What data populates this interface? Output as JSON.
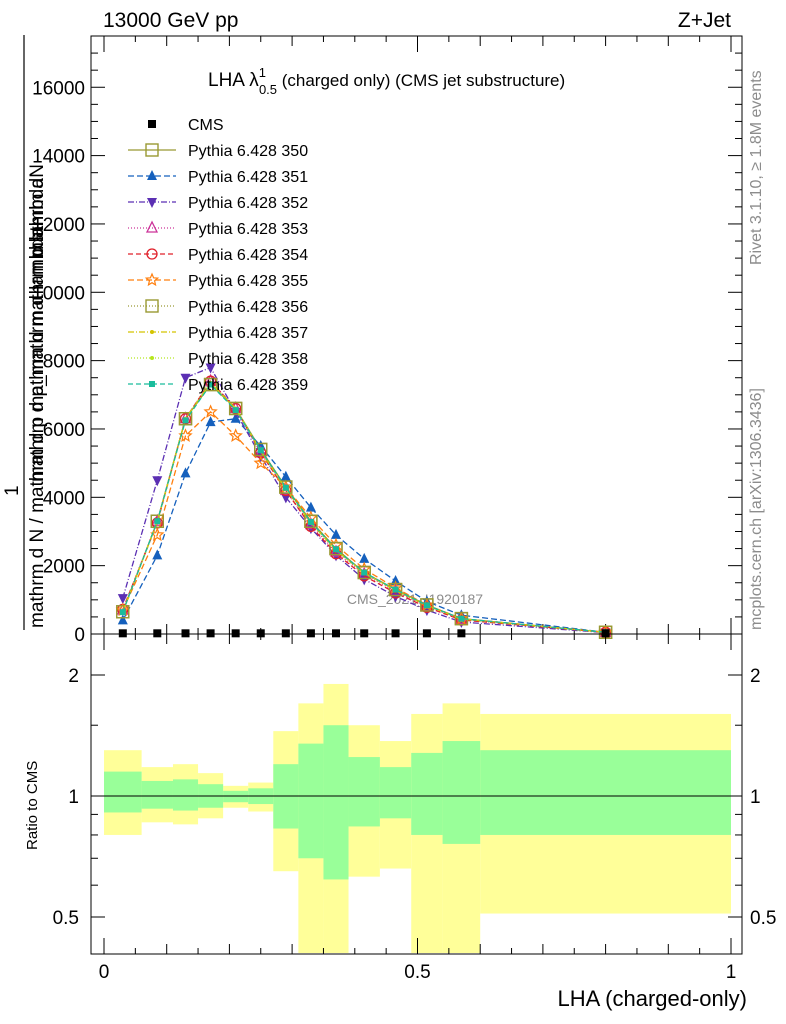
{
  "header": {
    "left": "13000 GeV pp",
    "right": "Z+Jet"
  },
  "side": {
    "rivet": "Rivet 3.1.10, ≥ 1.8M events",
    "mcplots": "mcplots.cern.ch [arXiv:1306.3436]"
  },
  "watermark": "CMS_2021_I1920187",
  "main_title": {
    "prefix": "LHA λ",
    "sup": "1",
    "sub": "0.5",
    "suffix": " (charged only) (CMS jet substructure)"
  },
  "ylabel_main": {
    "line1": "mathrm dN",
    "line1b": "mathrm d p_mathrm d lambda",
    "one": "1",
    "line2": "mathrm d N / mathrm d p mathrm d mathrm d lambda"
  },
  "ylabel_ratio": "Ratio to CMS",
  "xlabel": "LHA (charged-only)",
  "colors": {
    "green_band": "#99ff99",
    "yellow_band": "#ffff99"
  },
  "chart_data": [
    {
      "type": "line",
      "panel": "main",
      "xlim": [
        -0.02,
        1.0
      ],
      "ylim": [
        0,
        17500
      ],
      "yticks": [
        0,
        2000,
        4000,
        6000,
        8000,
        10000,
        12000,
        14000,
        16000
      ],
      "yticklabels": [
        "0",
        "2000",
        "4000",
        "6000",
        "8000",
        "10000",
        "12000",
        "14000",
        "16000"
      ],
      "legend_position": "top-left",
      "x": [
        0.03,
        0.085,
        0.13,
        0.17,
        0.21,
        0.25,
        0.29,
        0.33,
        0.37,
        0.415,
        0.465,
        0.515,
        0.57,
        0.8
      ],
      "series": [
        {
          "name": "CMS",
          "color": "#000000",
          "marker": "square-filled",
          "dash": "",
          "values": [
            20,
            20,
            20,
            20,
            20,
            20,
            20,
            20,
            20,
            20,
            20,
            20,
            20,
            20
          ]
        },
        {
          "name": "Pythia 6.428 350",
          "color": "#999933",
          "marker": "square-open",
          "dash": "",
          "values": [
            650,
            3300,
            6300,
            7300,
            6600,
            5400,
            4300,
            3300,
            2500,
            1800,
            1300,
            850,
            450,
            50
          ]
        },
        {
          "name": "Pythia 6.428 351",
          "color": "#1560bd",
          "marker": "triangle-up-filled",
          "dash": "6,3",
          "values": [
            400,
            2300,
            4700,
            6200,
            6300,
            5500,
            4600,
            3700,
            2900,
            2200,
            1550,
            950,
            550,
            50
          ]
        },
        {
          "name": "Pythia 6.428 352",
          "color": "#5b2fb3",
          "marker": "triangle-down-filled",
          "dash": "6,2,1,2",
          "values": [
            1050,
            4500,
            7500,
            7800,
            6500,
            5200,
            4000,
            3100,
            2300,
            1600,
            1100,
            700,
            350,
            40
          ]
        },
        {
          "name": "Pythia 6.428 353",
          "color": "#cc3399",
          "marker": "triangle-up-open",
          "dash": "1,2",
          "values": [
            700,
            3300,
            6300,
            7400,
            6600,
            5300,
            4200,
            3200,
            2400,
            1750,
            1250,
            800,
            420,
            50
          ]
        },
        {
          "name": "Pythia 6.428 354",
          "color": "#e0202a",
          "marker": "circle-open",
          "dash": "5,3",
          "values": [
            720,
            3250,
            6300,
            7400,
            6600,
            5300,
            4200,
            3150,
            2350,
            1700,
            1200,
            780,
            410,
            50
          ]
        },
        {
          "name": "Pythia 6.428 355",
          "color": "#ff7f0e",
          "marker": "star-open",
          "dash": "6,3",
          "values": [
            700,
            2900,
            5800,
            6500,
            5800,
            5000,
            4300,
            3400,
            2600,
            1900,
            1350,
            850,
            450,
            50
          ]
        },
        {
          "name": "Pythia 6.428 356",
          "color": "#999933",
          "marker": "square-open",
          "dash": "1,2",
          "values": [
            650,
            3300,
            6300,
            7300,
            6600,
            5400,
            4300,
            3300,
            2500,
            1800,
            1300,
            850,
            450,
            50
          ]
        },
        {
          "name": "Pythia 6.428 357",
          "color": "#d4c400",
          "marker": "small-dot",
          "dash": "6,2,1,2",
          "values": [
            660,
            3280,
            6300,
            7350,
            6600,
            5350,
            4250,
            3250,
            2450,
            1780,
            1280,
            830,
            440,
            50
          ]
        },
        {
          "name": "Pythia 6.428 358",
          "color": "#b5e61d",
          "marker": "small-dot",
          "dash": "1,2",
          "values": [
            660,
            3280,
            6300,
            7350,
            6600,
            5350,
            4250,
            3250,
            2450,
            1780,
            1280,
            830,
            440,
            50
          ]
        },
        {
          "name": "Pythia 6.428 359",
          "color": "#1abc9c",
          "marker": "square-small-filled",
          "dash": "5,3",
          "values": [
            640,
            3300,
            6250,
            7300,
            6550,
            5380,
            4280,
            3280,
            2480,
            1800,
            1300,
            840,
            450,
            50
          ]
        }
      ]
    },
    {
      "type": "area",
      "panel": "ratio",
      "xlim": [
        -0.02,
        1.0
      ],
      "ylim": [
        0.4,
        2.3
      ],
      "yscale": "log",
      "yticks": [
        0.5,
        1,
        2
      ],
      "yticklabels": [
        "0.5",
        "1",
        "2"
      ],
      "xticks": [
        0,
        0.5,
        1
      ],
      "xticklabels": [
        "0",
        "0.5",
        "1"
      ],
      "ylabel": "Ratio to CMS",
      "xlabel": "LHA (charged-only)",
      "reference_line": 1,
      "bins": [
        0,
        0.06,
        0.11,
        0.15,
        0.19,
        0.23,
        0.27,
        0.31,
        0.35,
        0.39,
        0.44,
        0.49,
        0.54,
        0.6,
        1.0
      ],
      "bands": [
        {
          "name": "stat",
          "color": "#99ff99",
          "lo": [
            0.91,
            0.93,
            0.92,
            0.935,
            0.965,
            0.955,
            0.83,
            0.7,
            0.62,
            0.84,
            0.88,
            0.8,
            0.76,
            0.8
          ],
          "hi": [
            1.15,
            1.09,
            1.1,
            1.07,
            1.03,
            1.045,
            1.2,
            1.35,
            1.5,
            1.25,
            1.18,
            1.28,
            1.37,
            1.3
          ]
        },
        {
          "name": "total",
          "color": "#ffff99",
          "lo": [
            0.8,
            0.86,
            0.85,
            0.88,
            0.935,
            0.915,
            0.65,
            0.4,
            0.4,
            0.63,
            0.66,
            0.4,
            0.4,
            0.51
          ],
          "hi": [
            1.3,
            1.18,
            1.2,
            1.14,
            1.06,
            1.08,
            1.45,
            1.7,
            1.9,
            1.5,
            1.37,
            1.6,
            1.7,
            1.6
          ]
        }
      ]
    }
  ]
}
